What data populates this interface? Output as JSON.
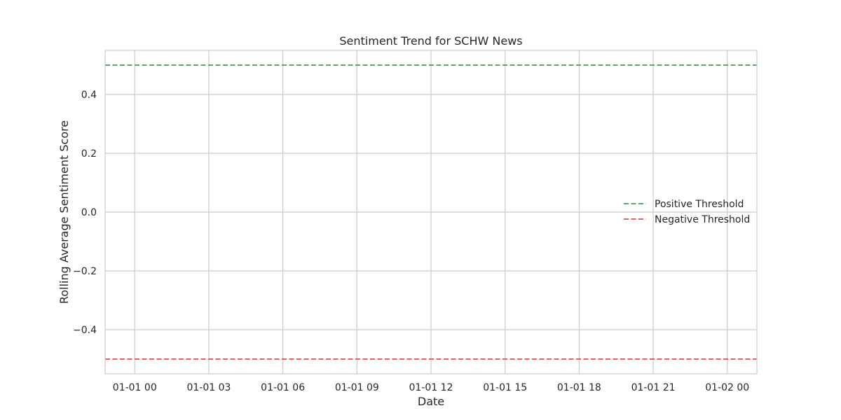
{
  "chart_data": {
    "type": "line",
    "title": "Sentiment Trend for SCHW News",
    "xlabel": "Date",
    "ylabel": "Rolling Average Sentiment Score",
    "x_ticks": [
      "01-01 00",
      "01-01 03",
      "01-01 06",
      "01-01 09",
      "01-01 12",
      "01-01 15",
      "01-01 18",
      "01-01 21",
      "01-02 00"
    ],
    "x_tick_hours": [
      0,
      3,
      6,
      9,
      12,
      15,
      18,
      21,
      24
    ],
    "xlim_hours": [
      -1.2,
      25.2
    ],
    "y_ticks": [
      0.4,
      0.2,
      0.0,
      -0.2,
      -0.4
    ],
    "y_tick_labels": [
      "0.4",
      "0.2",
      "0.0",
      "−0.2",
      "−0.4"
    ],
    "ylim": [
      -0.55,
      0.55
    ],
    "grid": true,
    "legend_placement": "center-right",
    "series": [
      {
        "name": "Positive Threshold",
        "kind": "hline",
        "y": 0.5,
        "color": "#55a868",
        "style": "dashed"
      },
      {
        "name": "Negative Threshold",
        "kind": "hline",
        "y": -0.5,
        "color": "#f15a5a",
        "style": "dashed"
      }
    ]
  }
}
